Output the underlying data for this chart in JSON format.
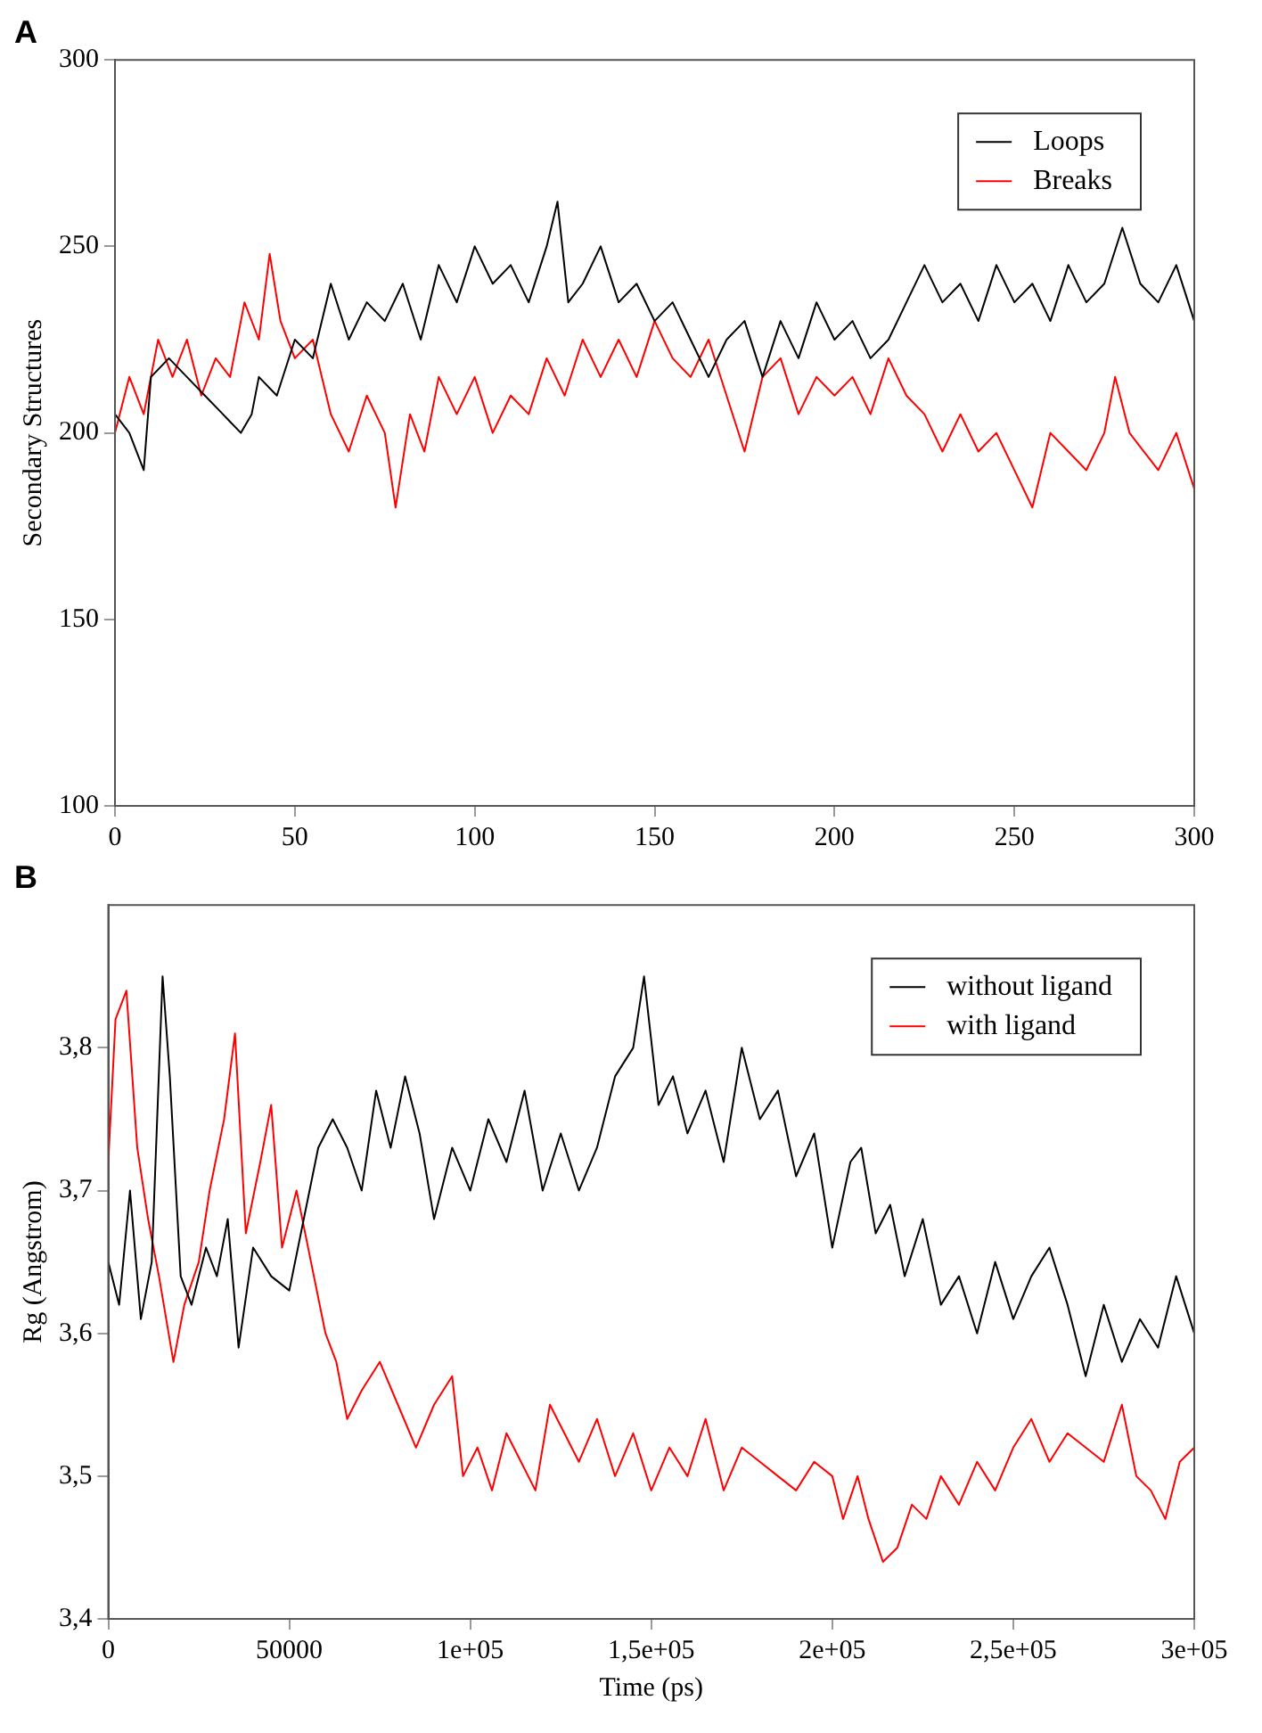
{
  "chart_data": [
    {
      "type": "line",
      "title": "A",
      "ylabel": "Secondary Structures",
      "xlim": [
        0,
        300
      ],
      "xticks": [
        0,
        50,
        100,
        150,
        200,
        250,
        300
      ],
      "ylim": [
        100,
        300
      ],
      "yticks": [
        100,
        150,
        200,
        250,
        300
      ],
      "grid": false,
      "legend": "top right",
      "series": [
        {
          "name": "Loops",
          "color": "#000000",
          "x": [
            0,
            4,
            8,
            10,
            15,
            20,
            25,
            30,
            35,
            38,
            40,
            45,
            50,
            55,
            60,
            65,
            70,
            75,
            80,
            85,
            90,
            95,
            100,
            105,
            110,
            115,
            120,
            123,
            126,
            130,
            135,
            140,
            145,
            150,
            155,
            160,
            165,
            170,
            175,
            180,
            185,
            190,
            195,
            200,
            205,
            210,
            215,
            220,
            225,
            230,
            235,
            240,
            245,
            250,
            255,
            260,
            265,
            270,
            275,
            280,
            285,
            290,
            295,
            300
          ],
          "values": [
            205,
            200,
            190,
            215,
            220,
            215,
            210,
            205,
            200,
            205,
            215,
            210,
            225,
            220,
            240,
            225,
            235,
            230,
            240,
            225,
            245,
            235,
            250,
            240,
            245,
            235,
            250,
            262,
            235,
            240,
            250,
            235,
            240,
            230,
            235,
            225,
            215,
            225,
            230,
            215,
            230,
            220,
            235,
            225,
            230,
            220,
            225,
            235,
            245,
            235,
            240,
            230,
            245,
            235,
            240,
            230,
            245,
            235,
            240,
            255,
            240,
            235,
            245,
            230
          ]
        },
        {
          "name": "Breaks",
          "color": "#ff0000",
          "x": [
            0,
            4,
            8,
            12,
            16,
            20,
            24,
            28,
            32,
            36,
            40,
            43,
            46,
            50,
            55,
            60,
            65,
            70,
            75,
            78,
            82,
            86,
            90,
            95,
            100,
            105,
            110,
            115,
            120,
            125,
            130,
            135,
            140,
            145,
            150,
            155,
            160,
            165,
            170,
            175,
            180,
            185,
            190,
            195,
            200,
            205,
            210,
            215,
            220,
            225,
            230,
            235,
            240,
            245,
            250,
            255,
            260,
            265,
            270,
            275,
            278,
            282,
            286,
            290,
            295,
            300
          ],
          "values": [
            200,
            215,
            205,
            225,
            215,
            225,
            210,
            220,
            215,
            235,
            225,
            248,
            230,
            220,
            225,
            205,
            195,
            210,
            200,
            180,
            205,
            195,
            215,
            205,
            215,
            200,
            210,
            205,
            220,
            210,
            225,
            215,
            225,
            215,
            230,
            220,
            215,
            225,
            210,
            195,
            215,
            220,
            205,
            215,
            210,
            215,
            205,
            220,
            210,
            205,
            195,
            205,
            195,
            200,
            190,
            180,
            200,
            195,
            190,
            200,
            215,
            200,
            195,
            190,
            200,
            185
          ]
        }
      ]
    },
    {
      "type": "line",
      "title": "B",
      "xlabel": "Time (ps)",
      "ylabel": "Rg (Angstrom)",
      "xlim": [
        0,
        300000
      ],
      "xticks": [
        0,
        50000,
        {
          "value": 100000,
          "label": "1e+05"
        },
        {
          "value": 150000,
          "label": "1,5e+05"
        },
        {
          "value": 200000,
          "label": "2e+05"
        },
        {
          "value": 250000,
          "label": "2,5e+05"
        },
        {
          "value": 300000,
          "label": "3e+05"
        }
      ],
      "ylim": [
        3.4,
        3.9
      ],
      "yticks": [
        {
          "value": 3.4,
          "label": "3,4"
        },
        {
          "value": 3.5,
          "label": "3,5"
        },
        {
          "value": 3.6,
          "label": "3,6"
        },
        {
          "value": 3.7,
          "label": "3,7"
        },
        {
          "value": 3.8,
          "label": "3,8"
        }
      ],
      "grid": false,
      "legend": "top right",
      "series": [
        {
          "name": "without ligand",
          "color": "#000000",
          "x": [
            0,
            3000,
            6000,
            9000,
            12000,
            15000,
            17000,
            20000,
            23000,
            27000,
            30000,
            33000,
            36000,
            40000,
            45000,
            50000,
            54000,
            58000,
            62000,
            66000,
            70000,
            74000,
            78000,
            82000,
            86000,
            90000,
            95000,
            100000,
            105000,
            110000,
            115000,
            120000,
            125000,
            130000,
            135000,
            140000,
            145000,
            148000,
            152000,
            156000,
            160000,
            165000,
            170000,
            175000,
            180000,
            185000,
            190000,
            195000,
            200000,
            205000,
            208000,
            212000,
            216000,
            220000,
            225000,
            230000,
            235000,
            240000,
            245000,
            250000,
            255000,
            260000,
            265000,
            270000,
            275000,
            280000,
            285000,
            290000,
            295000,
            300000
          ],
          "values": [
            3.65,
            3.62,
            3.7,
            3.61,
            3.65,
            3.85,
            3.78,
            3.64,
            3.62,
            3.66,
            3.64,
            3.68,
            3.59,
            3.66,
            3.64,
            3.63,
            3.68,
            3.73,
            3.75,
            3.73,
            3.7,
            3.77,
            3.73,
            3.78,
            3.74,
            3.68,
            3.73,
            3.7,
            3.75,
            3.72,
            3.77,
            3.7,
            3.74,
            3.7,
            3.73,
            3.78,
            3.8,
            3.85,
            3.76,
            3.78,
            3.74,
            3.77,
            3.72,
            3.8,
            3.75,
            3.77,
            3.71,
            3.74,
            3.66,
            3.72,
            3.73,
            3.67,
            3.69,
            3.64,
            3.68,
            3.62,
            3.64,
            3.6,
            3.65,
            3.61,
            3.64,
            3.66,
            3.62,
            3.57,
            3.62,
            3.58,
            3.61,
            3.59,
            3.64,
            3.6
          ]
        },
        {
          "name": "with ligand",
          "color": "#ff0000",
          "x": [
            0,
            2000,
            5000,
            8000,
            11000,
            14000,
            18000,
            21000,
            25000,
            28000,
            32000,
            35000,
            38000,
            42000,
            45000,
            48000,
            52000,
            56000,
            60000,
            63000,
            66000,
            70000,
            75000,
            80000,
            85000,
            90000,
            95000,
            98000,
            102000,
            106000,
            110000,
            114000,
            118000,
            122000,
            126000,
            130000,
            135000,
            140000,
            145000,
            150000,
            155000,
            160000,
            165000,
            170000,
            175000,
            180000,
            185000,
            190000,
            195000,
            200000,
            203000,
            207000,
            210000,
            214000,
            218000,
            222000,
            226000,
            230000,
            235000,
            240000,
            245000,
            250000,
            255000,
            260000,
            265000,
            270000,
            275000,
            280000,
            284000,
            288000,
            292000,
            296000,
            300000
          ],
          "values": [
            3.72,
            3.82,
            3.84,
            3.73,
            3.68,
            3.64,
            3.58,
            3.62,
            3.65,
            3.7,
            3.75,
            3.81,
            3.67,
            3.72,
            3.76,
            3.66,
            3.7,
            3.65,
            3.6,
            3.58,
            3.54,
            3.56,
            3.58,
            3.55,
            3.52,
            3.55,
            3.57,
            3.5,
            3.52,
            3.49,
            3.53,
            3.51,
            3.49,
            3.55,
            3.53,
            3.51,
            3.54,
            3.5,
            3.53,
            3.49,
            3.52,
            3.5,
            3.54,
            3.49,
            3.52,
            3.51,
            3.5,
            3.49,
            3.51,
            3.5,
            3.47,
            3.5,
            3.47,
            3.44,
            3.45,
            3.48,
            3.47,
            3.5,
            3.48,
            3.51,
            3.49,
            3.52,
            3.54,
            3.51,
            3.53,
            3.52,
            3.51,
            3.55,
            3.5,
            3.49,
            3.47,
            3.51,
            3.52
          ]
        }
      ]
    }
  ]
}
